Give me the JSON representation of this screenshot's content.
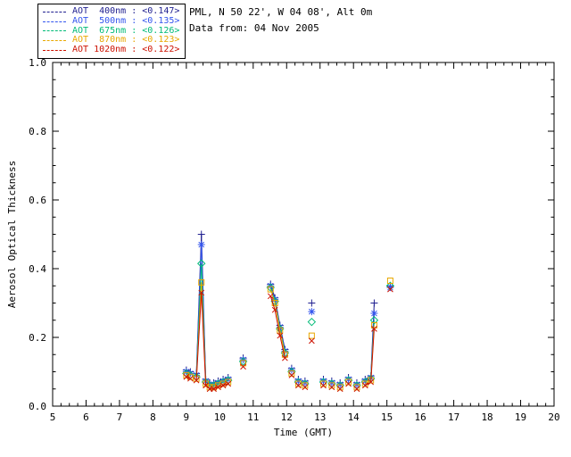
{
  "header": {
    "site_line": "PML, N 50 22', W 04 08', Alt 0m",
    "date_line": "Data from: 04 Nov 2005"
  },
  "chart_data": {
    "type": "scatter",
    "title": "",
    "xlabel": "Time (GMT)",
    "ylabel": "Aerosol Optical Thickness",
    "xlim": [
      5,
      20
    ],
    "ylim": [
      0.0,
      1.0
    ],
    "xticks": [
      5,
      6,
      7,
      8,
      9,
      10,
      11,
      12,
      13,
      14,
      15,
      16,
      17,
      18,
      19,
      20
    ],
    "yticks": [
      0.0,
      0.2,
      0.4,
      0.6,
      0.8,
      1.0
    ],
    "grid": false,
    "legend_position": "top-left",
    "line_connect_max_gap": 0.18,
    "x": [
      9.0,
      9.12,
      9.3,
      9.45,
      9.58,
      9.7,
      9.82,
      9.95,
      10.1,
      10.25,
      10.7,
      11.52,
      11.65,
      11.8,
      11.95,
      12.15,
      12.35,
      12.55,
      12.75,
      13.1,
      13.35,
      13.6,
      13.85,
      14.1,
      14.35,
      14.52,
      14.62,
      15.1
    ],
    "series": [
      {
        "name": "AOT 400nm",
        "legend_label": "AOT  400nm : <0.147>",
        "mean_value": "<0.147>",
        "color": "#202090",
        "marker": "plus",
        "values": [
          0.105,
          0.1,
          0.095,
          0.5,
          0.078,
          0.068,
          0.068,
          0.073,
          0.078,
          0.083,
          0.14,
          0.355,
          0.315,
          0.235,
          0.165,
          0.11,
          0.078,
          0.073,
          0.3,
          0.078,
          0.073,
          0.068,
          0.083,
          0.068,
          0.078,
          0.088,
          0.3,
          0.35
        ]
      },
      {
        "name": "AOT 500nm",
        "legend_label": "AOT  500nm : <0.135>",
        "mean_value": "<0.135>",
        "color": "#3355ee",
        "marker": "asterisk",
        "values": [
          0.1,
          0.095,
          0.09,
          0.47,
          0.073,
          0.063,
          0.063,
          0.068,
          0.073,
          0.078,
          0.135,
          0.35,
          0.31,
          0.23,
          0.16,
          0.105,
          0.073,
          0.068,
          0.275,
          0.073,
          0.068,
          0.063,
          0.078,
          0.063,
          0.073,
          0.083,
          0.27,
          0.345
        ]
      },
      {
        "name": "AOT 675nm",
        "legend_label": "AOT  675nm : <0.126>",
        "mean_value": "<0.126>",
        "color": "#00bb77",
        "marker": "diamond",
        "values": [
          0.095,
          0.09,
          0.085,
          0.415,
          0.07,
          0.06,
          0.06,
          0.065,
          0.07,
          0.075,
          0.13,
          0.345,
          0.305,
          0.225,
          0.155,
          0.1,
          0.07,
          0.065,
          0.245,
          0.07,
          0.065,
          0.06,
          0.075,
          0.06,
          0.07,
          0.08,
          0.25,
          0.35
        ]
      },
      {
        "name": "AOT 870nm",
        "legend_label": "AOT  870nm : <0.123>",
        "mean_value": "<0.123>",
        "color": "#e8a800",
        "marker": "square",
        "values": [
          0.09,
          0.085,
          0.08,
          0.36,
          0.065,
          0.055,
          0.055,
          0.06,
          0.065,
          0.07,
          0.125,
          0.34,
          0.3,
          0.22,
          0.15,
          0.095,
          0.065,
          0.06,
          0.205,
          0.065,
          0.06,
          0.055,
          0.07,
          0.055,
          0.065,
          0.075,
          0.235,
          0.365
        ]
      },
      {
        "name": "AOT 1020nm",
        "legend_label": "AOT 1020nm : <0.122>",
        "mean_value": "<0.122>",
        "color": "#cc1100",
        "marker": "x",
        "values": [
          0.085,
          0.08,
          0.075,
          0.33,
          0.06,
          0.05,
          0.05,
          0.055,
          0.06,
          0.065,
          0.115,
          0.32,
          0.28,
          0.205,
          0.14,
          0.09,
          0.06,
          0.055,
          0.19,
          0.06,
          0.055,
          0.05,
          0.065,
          0.05,
          0.06,
          0.07,
          0.225,
          0.34
        ]
      }
    ]
  }
}
